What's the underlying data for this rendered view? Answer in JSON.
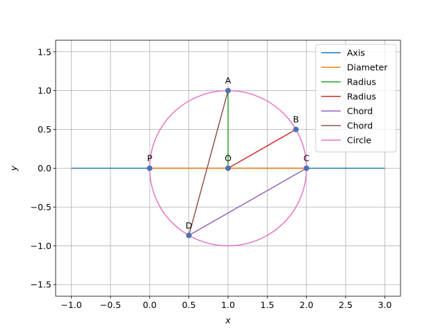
{
  "chart_data": {
    "type": "line",
    "title": "",
    "xlabel": "x",
    "ylabel": "y",
    "xlim": [
      -1.2,
      3.2
    ],
    "ylim": [
      -1.65,
      1.65
    ],
    "xticks": [
      -1.0,
      -0.5,
      0.0,
      0.5,
      1.0,
      1.5,
      2.0,
      2.5,
      3.0
    ],
    "yticks": [
      -1.5,
      -1.0,
      -0.5,
      0.0,
      0.5,
      1.0,
      1.5
    ],
    "xtick_labels": [
      "−1.0",
      "−0.5",
      "0.0",
      "0.5",
      "1.0",
      "1.5",
      "2.0",
      "2.5",
      "3.0"
    ],
    "ytick_labels": [
      "−1.5",
      "−1.0",
      "−0.5",
      "0.0",
      "0.5",
      "1.0",
      "1.5"
    ],
    "grid": true,
    "legend_position": "top-right",
    "series": [
      {
        "name": "Axis",
        "color": "#1f77b4",
        "x": [
          -1.0,
          3.0
        ],
        "y": [
          0.0,
          0.0
        ]
      },
      {
        "name": "Diameter",
        "color": "#ff7f0e",
        "x": [
          0.0,
          2.0
        ],
        "y": [
          0.0,
          0.0
        ]
      },
      {
        "name": "Radius",
        "color": "#2ca02c",
        "x": [
          1.0,
          1.0
        ],
        "y": [
          0.0,
          1.0
        ]
      },
      {
        "name": "Radius",
        "color": "#d62728",
        "x": [
          1.0,
          1.866
        ],
        "y": [
          0.0,
          0.5
        ]
      },
      {
        "name": "Chord",
        "color": "#9467bd",
        "x": [
          0.5,
          2.0
        ],
        "y": [
          -0.866,
          0.0
        ]
      },
      {
        "name": "Chord",
        "color": "#8c564b",
        "x": [
          0.5,
          1.0
        ],
        "y": [
          -0.866,
          1.0
        ]
      },
      {
        "name": "Circle",
        "color": "#e377c2",
        "circle": {
          "cx": 1.0,
          "cy": 0.0,
          "r": 1.0
        }
      }
    ],
    "points": [
      {
        "label": "A",
        "x": 1.0,
        "y": 1.0
      },
      {
        "label": "B",
        "x": 1.866,
        "y": 0.5
      },
      {
        "label": "C",
        "x": 2.0,
        "y": 0.0
      },
      {
        "label": "D",
        "x": 0.5,
        "y": -0.866
      },
      {
        "label": "O",
        "x": 1.0,
        "y": 0.0
      },
      {
        "label": "P",
        "x": 0.0,
        "y": 0.0
      }
    ],
    "point_color": "#4c72b0"
  }
}
